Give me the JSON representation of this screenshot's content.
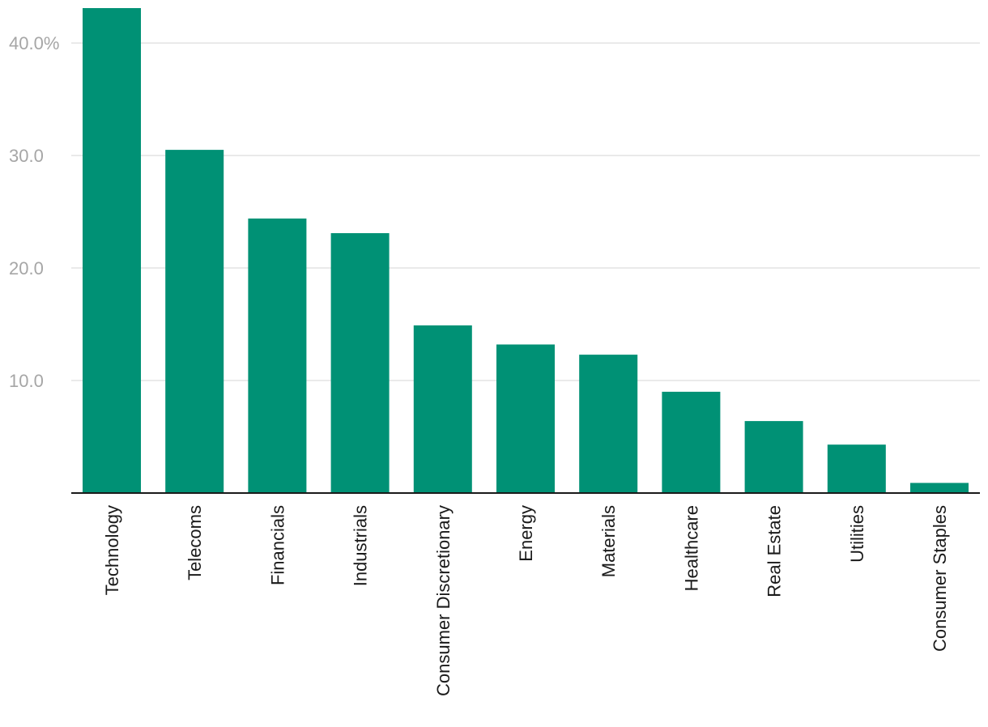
{
  "chart_data": {
    "type": "bar",
    "categories": [
      "Technology",
      "Telecoms",
      "Financials",
      "Industrials",
      "Consumer Discretionary",
      "Energy",
      "Materials",
      "Healthcare",
      "Real Estate",
      "Utilities",
      "Consumer Staples"
    ],
    "values": [
      43.1,
      30.5,
      24.4,
      23.1,
      14.9,
      13.2,
      12.3,
      9.0,
      6.4,
      4.3,
      0.9
    ],
    "ylim": [
      0,
      43.1
    ],
    "yticks": [
      10,
      20,
      30,
      40
    ],
    "ytick_labels": [
      "10.0",
      "20.0",
      "30.0",
      "40.0%"
    ],
    "grid": true,
    "bar_color": "#009175",
    "gridline_color": "#e3e3e3",
    "axis_color": "#1a1a1a",
    "ytick_color": "#a6a6a6"
  }
}
